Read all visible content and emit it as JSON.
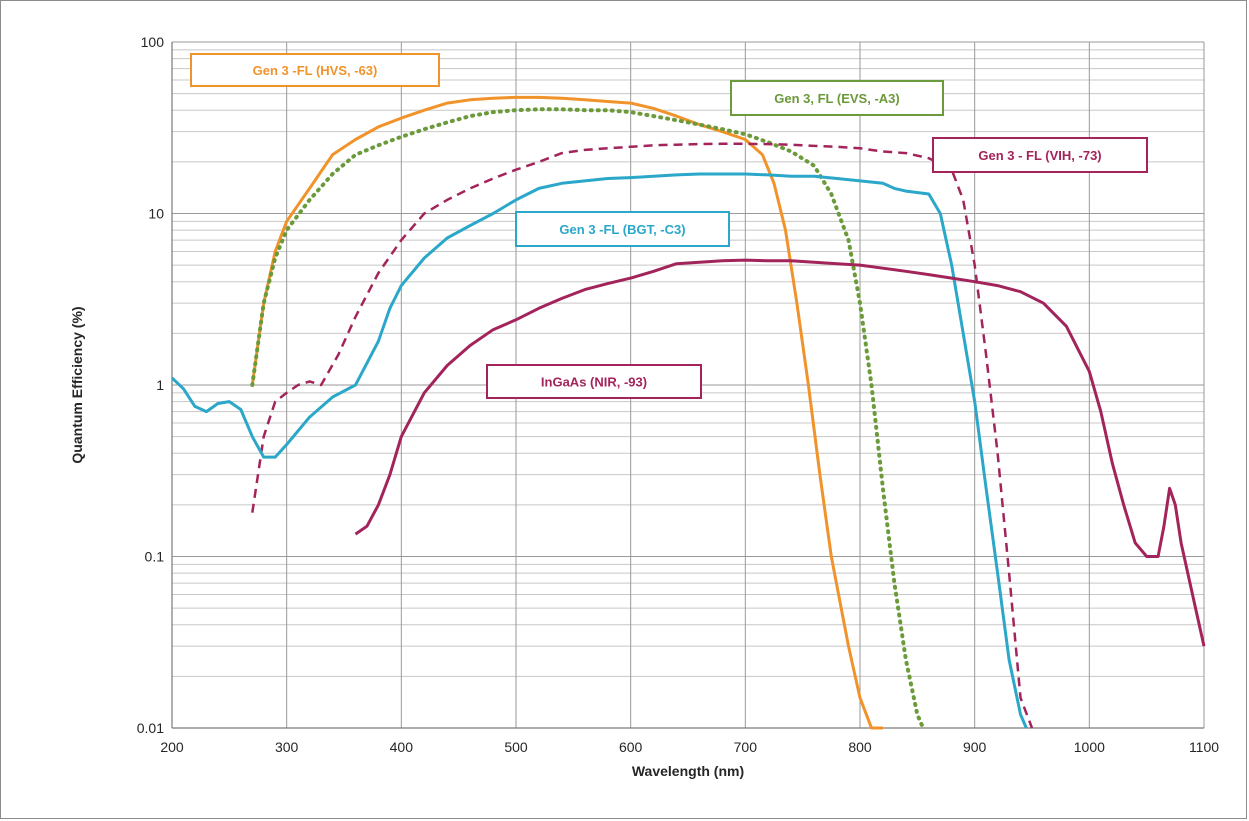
{
  "chart_data": {
    "type": "line",
    "xlabel": "Wavelength (nm)",
    "ylabel": "Quantum Efficiency (%)",
    "xlim": [
      200,
      1100
    ],
    "ylim": [
      0.01,
      100
    ],
    "yscale": "log",
    "grid": true,
    "x_ticks": [
      "200",
      "300",
      "400",
      "500",
      "600",
      "700",
      "800",
      "900",
      "1000",
      "1100"
    ],
    "y_ticks": [
      "0.01",
      "0.1",
      "1",
      "10",
      "100"
    ],
    "series": [
      {
        "name": "Gen 3 -FL (HVS, -63)",
        "color": "#f0932b",
        "style": "solid",
        "points": [
          [
            270,
            1.0
          ],
          [
            280,
            3.0
          ],
          [
            290,
            6.0
          ],
          [
            300,
            9.0
          ],
          [
            320,
            14
          ],
          [
            340,
            22
          ],
          [
            360,
            27
          ],
          [
            380,
            32
          ],
          [
            400,
            36
          ],
          [
            420,
            40
          ],
          [
            440,
            44
          ],
          [
            460,
            46
          ],
          [
            480,
            47
          ],
          [
            500,
            47.5
          ],
          [
            520,
            47.5
          ],
          [
            540,
            47
          ],
          [
            560,
            46
          ],
          [
            580,
            45
          ],
          [
            600,
            44
          ],
          [
            620,
            41
          ],
          [
            640,
            37
          ],
          [
            660,
            33
          ],
          [
            680,
            30
          ],
          [
            700,
            27
          ],
          [
            715,
            22
          ],
          [
            725,
            15
          ],
          [
            735,
            8
          ],
          [
            745,
            3
          ],
          [
            755,
            1.0
          ],
          [
            765,
            0.3
          ],
          [
            775,
            0.1
          ],
          [
            790,
            0.03
          ],
          [
            800,
            0.015
          ],
          [
            810,
            0.01
          ],
          [
            820,
            0.01
          ]
        ]
      },
      {
        "name": "Gen 3, FL (EVS, -A3)",
        "color": "#6b9a3a",
        "style": "dotted",
        "points": [
          [
            270,
            1.0
          ],
          [
            280,
            3.0
          ],
          [
            290,
            5.5
          ],
          [
            300,
            8
          ],
          [
            320,
            12
          ],
          [
            340,
            17
          ],
          [
            360,
            22
          ],
          [
            380,
            25
          ],
          [
            400,
            28
          ],
          [
            420,
            31
          ],
          [
            440,
            34
          ],
          [
            460,
            37
          ],
          [
            480,
            39
          ],
          [
            500,
            40
          ],
          [
            520,
            40.5
          ],
          [
            540,
            40.5
          ],
          [
            560,
            40
          ],
          [
            580,
            40
          ],
          [
            600,
            39
          ],
          [
            620,
            37
          ],
          [
            640,
            35
          ],
          [
            660,
            33
          ],
          [
            680,
            31
          ],
          [
            700,
            29
          ],
          [
            720,
            26
          ],
          [
            740,
            23
          ],
          [
            760,
            19
          ],
          [
            775,
            13
          ],
          [
            790,
            7
          ],
          [
            800,
            3
          ],
          [
            810,
            1.0
          ],
          [
            820,
            0.25
          ],
          [
            830,
            0.07
          ],
          [
            840,
            0.025
          ],
          [
            850,
            0.012
          ],
          [
            855,
            0.01
          ]
        ]
      },
      {
        "name": "Gen 3 - FL (VIH, -73)",
        "color": "#a3245b",
        "style": "dashed",
        "points": [
          [
            270,
            0.18
          ],
          [
            280,
            0.5
          ],
          [
            290,
            0.8
          ],
          [
            300,
            0.9
          ],
          [
            310,
            1.0
          ],
          [
            320,
            1.05
          ],
          [
            330,
            1.0
          ],
          [
            345,
            1.5
          ],
          [
            360,
            2.5
          ],
          [
            380,
            4.5
          ],
          [
            400,
            7
          ],
          [
            420,
            10
          ],
          [
            440,
            12
          ],
          [
            460,
            14
          ],
          [
            480,
            16
          ],
          [
            500,
            18
          ],
          [
            520,
            20
          ],
          [
            540,
            22.5
          ],
          [
            560,
            23.5
          ],
          [
            580,
            24
          ],
          [
            600,
            24.5
          ],
          [
            620,
            25
          ],
          [
            640,
            25.2
          ],
          [
            660,
            25.4
          ],
          [
            680,
            25.5
          ],
          [
            700,
            25.5
          ],
          [
            720,
            25.4
          ],
          [
            740,
            25.2
          ],
          [
            760,
            24.8
          ],
          [
            780,
            24.5
          ],
          [
            800,
            24
          ],
          [
            820,
            23
          ],
          [
            840,
            22.5
          ],
          [
            860,
            21
          ],
          [
            880,
            18
          ],
          [
            890,
            12
          ],
          [
            900,
            5
          ],
          [
            910,
            1.5
          ],
          [
            920,
            0.4
          ],
          [
            930,
            0.08
          ],
          [
            940,
            0.015
          ],
          [
            950,
            0.01
          ]
        ]
      },
      {
        "name": "Gen 3 -FL (BGT, -C3)",
        "color": "#2aa7c9",
        "style": "solid",
        "points": [
          [
            200,
            1.1
          ],
          [
            210,
            0.95
          ],
          [
            220,
            0.75
          ],
          [
            230,
            0.7
          ],
          [
            240,
            0.78
          ],
          [
            250,
            0.8
          ],
          [
            260,
            0.72
          ],
          [
            270,
            0.5
          ],
          [
            280,
            0.38
          ],
          [
            290,
            0.38
          ],
          [
            300,
            0.45
          ],
          [
            320,
            0.65
          ],
          [
            340,
            0.85
          ],
          [
            360,
            1.0
          ],
          [
            380,
            1.8
          ],
          [
            390,
            2.8
          ],
          [
            400,
            3.8
          ],
          [
            420,
            5.5
          ],
          [
            440,
            7.2
          ],
          [
            460,
            8.5
          ],
          [
            480,
            10
          ],
          [
            500,
            12
          ],
          [
            520,
            14
          ],
          [
            540,
            15
          ],
          [
            560,
            15.5
          ],
          [
            580,
            16
          ],
          [
            600,
            16.2
          ],
          [
            620,
            16.5
          ],
          [
            640,
            16.8
          ],
          [
            660,
            17
          ],
          [
            680,
            17
          ],
          [
            700,
            17
          ],
          [
            720,
            16.8
          ],
          [
            740,
            16.5
          ],
          [
            760,
            16.5
          ],
          [
            780,
            16
          ],
          [
            800,
            15.5
          ],
          [
            820,
            15
          ],
          [
            830,
            14
          ],
          [
            840,
            13.5
          ],
          [
            860,
            13
          ],
          [
            870,
            10
          ],
          [
            880,
            5
          ],
          [
            890,
            2
          ],
          [
            900,
            0.8
          ],
          [
            910,
            0.25
          ],
          [
            920,
            0.08
          ],
          [
            930,
            0.025
          ],
          [
            940,
            0.012
          ],
          [
            945,
            0.01
          ]
        ]
      },
      {
        "name": "InGaAs (NIR, -93)",
        "color": "#a3245b",
        "style": "solid",
        "points": [
          [
            360,
            0.135
          ],
          [
            370,
            0.15
          ],
          [
            380,
            0.2
          ],
          [
            390,
            0.3
          ],
          [
            400,
            0.5
          ],
          [
            420,
            0.9
          ],
          [
            440,
            1.3
          ],
          [
            460,
            1.7
          ],
          [
            480,
            2.1
          ],
          [
            500,
            2.4
          ],
          [
            520,
            2.8
          ],
          [
            540,
            3.2
          ],
          [
            560,
            3.6
          ],
          [
            580,
            3.9
          ],
          [
            600,
            4.2
          ],
          [
            620,
            4.6
          ],
          [
            640,
            5.1
          ],
          [
            660,
            5.2
          ],
          [
            680,
            5.3
          ],
          [
            700,
            5.35
          ],
          [
            720,
            5.3
          ],
          [
            740,
            5.3
          ],
          [
            760,
            5.2
          ],
          [
            780,
            5.1
          ],
          [
            800,
            5.0
          ],
          [
            820,
            4.8
          ],
          [
            840,
            4.6
          ],
          [
            860,
            4.4
          ],
          [
            880,
            4.2
          ],
          [
            900,
            4.0
          ],
          [
            920,
            3.8
          ],
          [
            940,
            3.5
          ],
          [
            960,
            3.0
          ],
          [
            980,
            2.2
          ],
          [
            1000,
            1.2
          ],
          [
            1010,
            0.7
          ],
          [
            1020,
            0.35
          ],
          [
            1030,
            0.2
          ],
          [
            1040,
            0.12
          ],
          [
            1050,
            0.1
          ],
          [
            1060,
            0.1
          ],
          [
            1065,
            0.15
          ],
          [
            1070,
            0.25
          ],
          [
            1075,
            0.2
          ],
          [
            1080,
            0.12
          ],
          [
            1090,
            0.06
          ],
          [
            1100,
            0.03
          ]
        ]
      }
    ],
    "legend_boxes": [
      {
        "label": "Gen 3 -FL (HVS, -63)",
        "color": "#f0932b"
      },
      {
        "label": "Gen 3, FL (EVS, -A3)",
        "color": "#6b9a3a"
      },
      {
        "label": "Gen 3 - FL (VIH, -73)",
        "color": "#a3245b"
      },
      {
        "label": "Gen 3 -FL (BGT, -C3)",
        "color": "#2aa7c9"
      },
      {
        "label": "InGaAs (NIR, -93)",
        "color": "#a3245b"
      }
    ]
  }
}
